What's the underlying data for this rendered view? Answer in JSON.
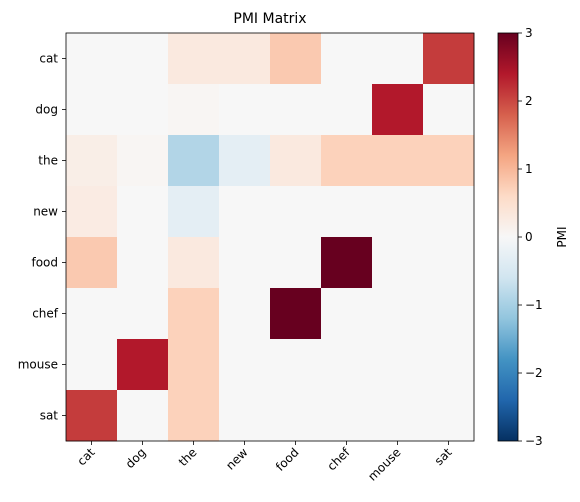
{
  "chart_data": {
    "type": "heatmap",
    "title": "PMI Matrix",
    "row_labels": [
      "cat",
      "dog",
      "the",
      "new",
      "food",
      "chef",
      "mouse",
      "sat"
    ],
    "col_labels": [
      "cat",
      "dog",
      "the",
      "new",
      "food",
      "chef",
      "mouse",
      "sat"
    ],
    "values": [
      [
        0.0,
        0.0,
        0.3,
        0.3,
        0.8,
        0.0,
        0.0,
        2.1
      ],
      [
        0.0,
        0.0,
        0.05,
        0.0,
        0.0,
        0.0,
        2.4,
        0.0
      ],
      [
        0.2,
        0.05,
        -0.9,
        -0.3,
        0.3,
        0.7,
        0.7,
        0.7
      ],
      [
        0.25,
        0.0,
        -0.3,
        0.0,
        0.0,
        0.0,
        0.0,
        0.0
      ],
      [
        0.8,
        0.0,
        0.3,
        0.0,
        0.0,
        3.0,
        0.0,
        0.0
      ],
      [
        0.0,
        0.0,
        0.7,
        0.0,
        3.0,
        0.0,
        0.0,
        0.0
      ],
      [
        0.0,
        2.4,
        0.7,
        0.0,
        0.0,
        0.0,
        0.0,
        0.0
      ],
      [
        2.1,
        0.0,
        0.7,
        0.0,
        0.0,
        0.0,
        0.0,
        0.0
      ]
    ],
    "colormap": "RdBu_r",
    "vmin": -3,
    "vmax": 3,
    "colorbar": {
      "label": "PMI",
      "ticks": [
        -3,
        -2,
        -1,
        0,
        1,
        2,
        3
      ],
      "tick_labels": [
        "−3",
        "−2",
        "−1",
        "0",
        "1",
        "2",
        "3"
      ]
    },
    "grid": false
  }
}
